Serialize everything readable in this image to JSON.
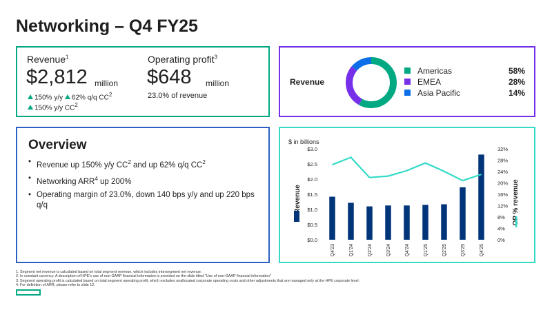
{
  "page": {
    "title": "Networking – Q4 FY25"
  },
  "revenue": {
    "label": "Revenue",
    "label_sup": "1",
    "value": "$2,812",
    "unit": "million",
    "growth1_a": "150% y/y",
    "growth1_b": "62% q/q CC",
    "growth1_b_sup": "2",
    "growth2": "150% y/y CC",
    "growth2_sup": "2"
  },
  "op_profit": {
    "label": "Operating profit",
    "label_sup": "3",
    "value": "$648",
    "unit": "million",
    "note": "23.0% of revenue"
  },
  "donut": {
    "label": "Revenue",
    "segments": [
      {
        "name": "Americas",
        "value": 58,
        "display": "58%",
        "color": "#01a982"
      },
      {
        "name": "EMEA",
        "value": 28,
        "display": "28%",
        "color": "#7630ea"
      },
      {
        "name": "Asia Pacific",
        "value": 14,
        "display": "14%",
        "color": "#0d6fe8"
      }
    ]
  },
  "overview": {
    "title": "Overview",
    "b1": "Revenue up 150% y/y CC",
    "b1_sup1": "2",
    "b1_mid": " and up 62% q/q CC",
    "b1_sup2": "2",
    "b2": "Networking ARR",
    "b2_sup": "4",
    "b2_tail": " up 200%",
    "b3": "Operating margin of 23.0%, down 140 bps y/y and up 220 bps q/q"
  },
  "chart_data": {
    "type": "bar",
    "title": "$ in billions",
    "categories": [
      "Q4'23",
      "Q1'24",
      "Q2'24",
      "Q3'24",
      "Q4'24",
      "Q1'25",
      "Q2'25",
      "Q3'25",
      "Q4'25"
    ],
    "series": [
      {
        "name": "Revenue",
        "type": "bar",
        "axis": "left",
        "color": "#01357a",
        "values": [
          1.42,
          1.22,
          1.1,
          1.13,
          1.13,
          1.15,
          1.17,
          1.73,
          2.81
        ]
      },
      {
        "name": "OP % revenue",
        "type": "line",
        "axis": "right",
        "color": "#32dac8",
        "values": [
          26.4,
          29.0,
          21.9,
          22.4,
          24.3,
          27.0,
          24.1,
          20.8,
          23.0
        ]
      }
    ],
    "ylabel": "Revenue",
    "y2label": "OP % revenue",
    "ylim": [
      0,
      3.0
    ],
    "y2lim": [
      0,
      32
    ],
    "yticks": [
      "$0.0",
      "$0.5",
      "$1.0",
      "$1.5",
      "$2.0",
      "$2.5",
      "$3.0"
    ],
    "y2ticks": [
      "0%",
      "4%",
      "8%",
      "12%",
      "16%",
      "20%",
      "24%",
      "28%",
      "32%"
    ],
    "grid": false,
    "legend": "axis-labels"
  },
  "footnotes": [
    "1. Segment net revenue is calculated based on total segment revenue, which includes intersegment net revenue.",
    "2. In constant currency. A description of HPE's use of non-GAAP financial information is provided on the slide titled \"Use of non-GAAP financial information\"",
    "3. Segment operating profit is calculated based on total segment operating profit, which excludes unallocated corporate operating costs and other adjustments that are managed only at the HPE corporate level.",
    "4. For definition of ARR, please refer to slide 12."
  ]
}
